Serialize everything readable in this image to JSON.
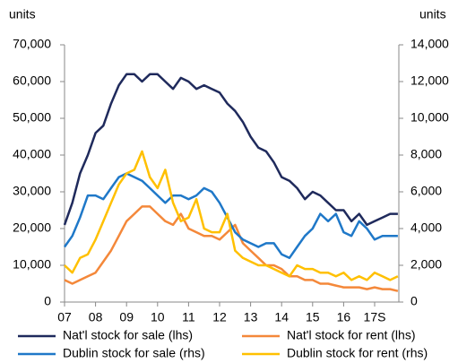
{
  "chart_data": {
    "type": "line",
    "ylabel": "units",
    "y2label": "units",
    "categories": [
      "07",
      null,
      null,
      null,
      "08",
      null,
      null,
      null,
      "09",
      null,
      null,
      null,
      "10",
      null,
      null,
      null,
      "11",
      null,
      null,
      null,
      "12",
      null,
      null,
      null,
      "13",
      null,
      null,
      null,
      "14",
      null,
      null,
      null,
      "15",
      null,
      null,
      null,
      "16",
      null,
      null,
      null,
      "17S",
      null,
      null,
      null
    ],
    "ylim": [
      0,
      70000
    ],
    "yticks": [
      0,
      {
        "value": 10000,
        "label": "10,000"
      },
      {
        "value": 20000,
        "label": "20,000"
      },
      {
        "value": 30000,
        "label": "30,000"
      },
      {
        "value": 40000,
        "label": "40,000"
      },
      {
        "value": 50000,
        "label": "50,000"
      },
      {
        "value": 60000,
        "label": "60,000"
      },
      {
        "value": 70000,
        "label": "70,000"
      }
    ],
    "y2lim": [
      0,
      14000
    ],
    "y2ticks": [
      0,
      {
        "value": 2000,
        "label": "2,000"
      },
      {
        "value": 4000,
        "label": "4,000"
      },
      {
        "value": 6000,
        "label": "6,000"
      },
      {
        "value": 8000,
        "label": "8,000"
      },
      {
        "value": 10000,
        "label": "10,000"
      },
      {
        "value": 12000,
        "label": "12,000"
      },
      {
        "value": 14000,
        "label": "14,000"
      }
    ],
    "series": [
      {
        "name": "Nat'l stock for sale (lhs)",
        "color": "#1f2a5c",
        "axis": "y",
        "values": [
          21000,
          27000,
          35000,
          40000,
          46000,
          48000,
          54000,
          59000,
          62000,
          62000,
          60000,
          62000,
          62000,
          60000,
          58000,
          61000,
          60000,
          58000,
          59000,
          58000,
          57000,
          54000,
          52000,
          49000,
          45000,
          42000,
          41000,
          38000,
          34000,
          33000,
          31000,
          28000,
          30000,
          29000,
          27000,
          25000,
          25000,
          22000,
          24000,
          21000,
          22000,
          23000,
          24000,
          24000
        ]
      },
      {
        "name": "Nat'l stock for rent (lhs)",
        "color": "#f4883a",
        "axis": "y",
        "values": [
          6000,
          5000,
          6000,
          7000,
          8000,
          11000,
          14000,
          18000,
          22000,
          24000,
          26000,
          26000,
          24000,
          22000,
          21000,
          24000,
          20000,
          19000,
          18000,
          18000,
          17000,
          19000,
          21000,
          16000,
          14000,
          12000,
          10000,
          10000,
          9000,
          7000,
          7000,
          6000,
          6000,
          5000,
          5000,
          4500,
          4000,
          4000,
          4000,
          3500,
          4000,
          3500,
          3500,
          3000
        ]
      },
      {
        "name": "Dublin stock for sale (rhs)",
        "color": "#1f78c8",
        "axis": "y2",
        "values": [
          3000,
          3600,
          4600,
          5800,
          5800,
          5600,
          6200,
          6800,
          7000,
          6800,
          6600,
          6200,
          5800,
          5400,
          5800,
          5800,
          5600,
          5800,
          6200,
          6000,
          5400,
          4600,
          3800,
          3400,
          3200,
          3000,
          3200,
          3200,
          2600,
          2400,
          3000,
          3600,
          4000,
          4800,
          4400,
          4800,
          3800,
          3600,
          4400,
          4000,
          3400,
          3600,
          3600,
          3600
        ]
      },
      {
        "name": "Dublin stock for rent (rhs)",
        "color": "#ffc000",
        "axis": "y2",
        "values": [
          2000,
          1600,
          2400,
          2600,
          3400,
          4400,
          5400,
          6400,
          7000,
          7200,
          8200,
          6800,
          6200,
          7200,
          5400,
          4400,
          4600,
          5600,
          4000,
          3800,
          3800,
          4800,
          2800,
          2400,
          2200,
          2000,
          2000,
          1800,
          1600,
          1400,
          2000,
          1800,
          1800,
          1600,
          1600,
          1400,
          1600,
          1200,
          1400,
          1200,
          1600,
          1400,
          1200,
          1400
        ]
      }
    ]
  }
}
